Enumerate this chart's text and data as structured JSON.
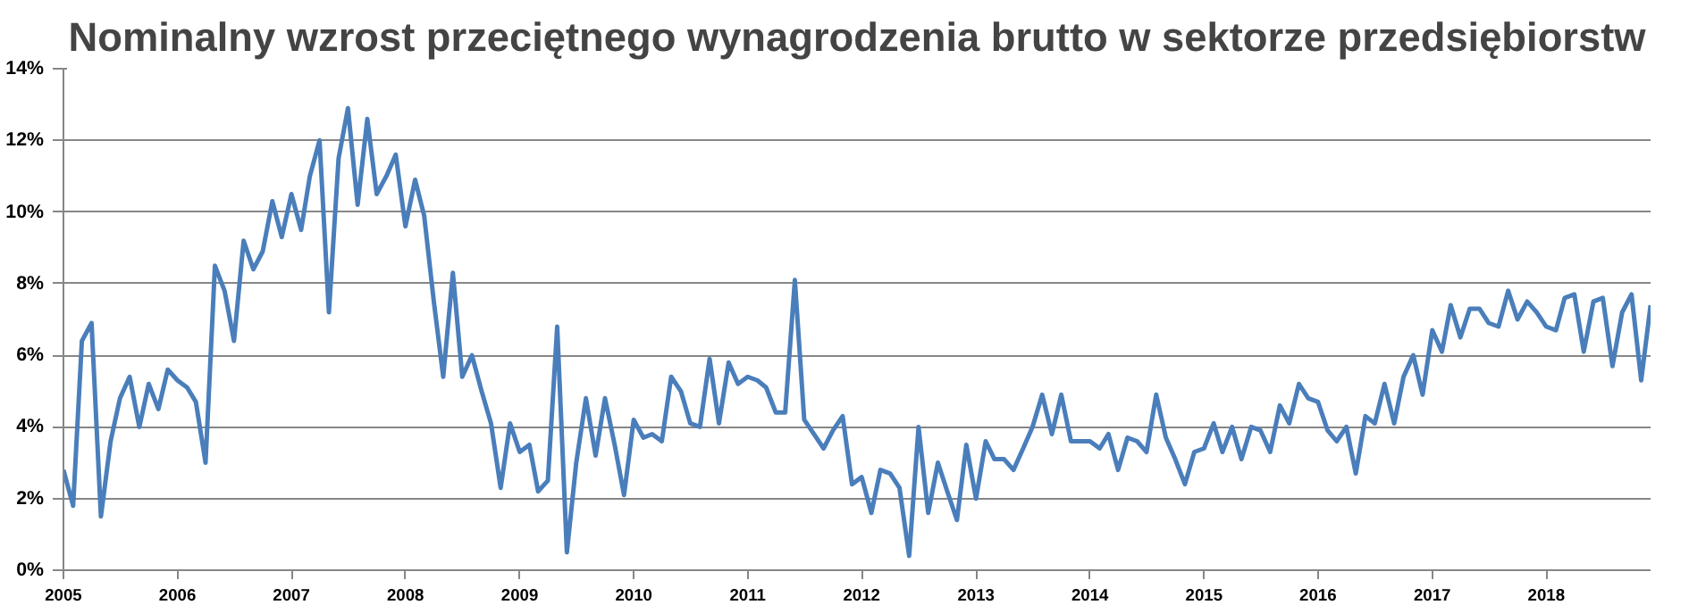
{
  "chart_data": {
    "type": "line",
    "title": "Nominalny wzrost przeciętnego wynagrodzenia brutto w sektorze przedsiębiorstw",
    "x": [
      "2005-01",
      "2005-02",
      "2005-03",
      "2005-04",
      "2005-05",
      "2005-06",
      "2005-07",
      "2005-08",
      "2005-09",
      "2005-10",
      "2005-11",
      "2005-12",
      "2006-01",
      "2006-02",
      "2006-03",
      "2006-04",
      "2006-05",
      "2006-06",
      "2006-07",
      "2006-08",
      "2006-09",
      "2006-10",
      "2006-11",
      "2006-12",
      "2007-01",
      "2007-02",
      "2007-03",
      "2007-04",
      "2007-05",
      "2007-06",
      "2007-07",
      "2007-08",
      "2007-09",
      "2007-10",
      "2007-11",
      "2007-12",
      "2008-01",
      "2008-02",
      "2008-03",
      "2008-04",
      "2008-05",
      "2008-06",
      "2008-07",
      "2008-08",
      "2008-09",
      "2008-10",
      "2008-11",
      "2008-12",
      "2009-01",
      "2009-02",
      "2009-03",
      "2009-04",
      "2009-05",
      "2009-06",
      "2009-07",
      "2009-08",
      "2009-09",
      "2009-10",
      "2009-11",
      "2009-12",
      "2010-01",
      "2010-02",
      "2010-03",
      "2010-04",
      "2010-05",
      "2010-06",
      "2010-07",
      "2010-08",
      "2010-09",
      "2010-10",
      "2010-11",
      "2010-12",
      "2011-01",
      "2011-02",
      "2011-03",
      "2011-04",
      "2011-05",
      "2011-06",
      "2011-07",
      "2011-08",
      "2011-09",
      "2011-10",
      "2011-11",
      "2011-12",
      "2012-01",
      "2012-02",
      "2012-03",
      "2012-04",
      "2012-05",
      "2012-06",
      "2012-07",
      "2012-08",
      "2012-09",
      "2012-10",
      "2012-11",
      "2012-12",
      "2013-01",
      "2013-02",
      "2013-03",
      "2013-04",
      "2013-05",
      "2013-06",
      "2013-07",
      "2013-08",
      "2013-09",
      "2013-10",
      "2013-11",
      "2013-12",
      "2014-01",
      "2014-02",
      "2014-03",
      "2014-04",
      "2014-05",
      "2014-06",
      "2014-07",
      "2014-08",
      "2014-09",
      "2014-10",
      "2014-11",
      "2014-12",
      "2015-01",
      "2015-02",
      "2015-03",
      "2015-04",
      "2015-05",
      "2015-06",
      "2015-07",
      "2015-08",
      "2015-09",
      "2015-10",
      "2015-11",
      "2015-12",
      "2016-01",
      "2016-02",
      "2016-03",
      "2016-04",
      "2016-05",
      "2016-06",
      "2016-07",
      "2016-08",
      "2016-09",
      "2016-10",
      "2016-11",
      "2016-12",
      "2017-01",
      "2017-02",
      "2017-03",
      "2017-04",
      "2017-05",
      "2017-06",
      "2017-07",
      "2017-08",
      "2017-09",
      "2017-10",
      "2017-11",
      "2017-12",
      "2018-01",
      "2018-02",
      "2018-03",
      "2018-04",
      "2018-05",
      "2018-06",
      "2018-07",
      "2018-08",
      "2018-09",
      "2018-10",
      "2018-11",
      "2018-12"
    ],
    "series": [
      {
        "color": "#4a7ebb",
        "values": [
          2.8,
          1.8,
          6.4,
          6.9,
          1.5,
          3.6,
          4.8,
          5.4,
          4.0,
          5.2,
          4.5,
          5.6,
          5.3,
          5.1,
          4.7,
          3.0,
          8.5,
          7.8,
          6.4,
          9.2,
          8.4,
          8.9,
          10.3,
          9.3,
          10.5,
          9.5,
          11.0,
          12.0,
          7.2,
          11.5,
          12.9,
          10.2,
          12.6,
          10.5,
          11.0,
          11.6,
          9.6,
          10.9,
          9.9,
          7.5,
          5.4,
          8.3,
          5.4,
          6.0,
          5.0,
          4.1,
          2.3,
          4.1,
          3.3,
          3.5,
          2.2,
          2.5,
          6.8,
          0.5,
          3.0,
          4.8,
          3.2,
          4.8,
          3.5,
          2.1,
          4.2,
          3.7,
          3.8,
          3.6,
          5.4,
          5.0,
          4.1,
          4.0,
          5.9,
          4.1,
          5.8,
          5.2,
          5.4,
          5.3,
          5.1,
          4.4,
          4.4,
          8.1,
          4.2,
          3.8,
          3.4,
          3.9,
          4.3,
          2.4,
          2.6,
          1.6,
          2.8,
          2.7,
          2.3,
          0.4,
          4.0,
          1.6,
          3.0,
          2.2,
          1.4,
          3.5,
          2.0,
          3.6,
          3.1,
          3.1,
          2.8,
          3.4,
          4.0,
          4.9,
          3.8,
          4.9,
          3.6,
          3.6,
          3.6,
          3.4,
          3.8,
          2.8,
          3.7,
          3.6,
          3.3,
          4.9,
          3.7,
          3.1,
          2.4,
          3.3,
          3.4,
          4.1,
          3.3,
          4.0,
          3.1,
          4.0,
          3.9,
          3.3,
          4.6,
          4.1,
          5.2,
          4.8,
          4.7,
          3.9,
          3.6,
          4.0,
          2.7,
          4.3,
          4.1,
          5.2,
          4.1,
          5.4,
          6.0,
          4.9,
          6.7,
          6.1,
          7.4,
          6.5,
          7.3,
          7.3,
          6.9,
          6.8,
          7.8,
          7.0,
          7.5,
          7.2,
          6.8,
          6.7,
          7.6,
          7.7,
          6.1,
          7.5,
          7.6,
          5.7,
          7.2,
          7.7,
          5.3,
          7.4
        ]
      }
    ],
    "xlim": [
      "2005-01",
      "2018-12"
    ],
    "xticks": [
      {
        "value": "2005-01",
        "label": "2005"
      },
      {
        "value": "2006-01",
        "label": "2006"
      },
      {
        "value": "2007-01",
        "label": "2007"
      },
      {
        "value": "2008-01",
        "label": "2008"
      },
      {
        "value": "2009-01",
        "label": "2009"
      },
      {
        "value": "2010-01",
        "label": "2010"
      },
      {
        "value": "2011-01",
        "label": "2011"
      },
      {
        "value": "2012-01",
        "label": "2012"
      },
      {
        "value": "2013-01",
        "label": "2013"
      },
      {
        "value": "2014-01",
        "label": "2014"
      },
      {
        "value": "2015-01",
        "label": "2015"
      },
      {
        "value": "2016-01",
        "label": "2016"
      },
      {
        "value": "2017-01",
        "label": "2017"
      },
      {
        "value": "2018-01",
        "label": "2018"
      }
    ],
    "ylim": [
      0,
      14
    ],
    "yticks": [
      {
        "value": 0,
        "label": "0%"
      },
      {
        "value": 2,
        "label": "2%"
      },
      {
        "value": 4,
        "label": "4%"
      },
      {
        "value": 6,
        "label": "6%"
      },
      {
        "value": 8,
        "label": "8%"
      },
      {
        "value": 10,
        "label": "10%"
      },
      {
        "value": 12,
        "label": "12%"
      },
      {
        "value": 14,
        "label": "14%"
      }
    ],
    "grid": "y",
    "line_style": "solid"
  }
}
